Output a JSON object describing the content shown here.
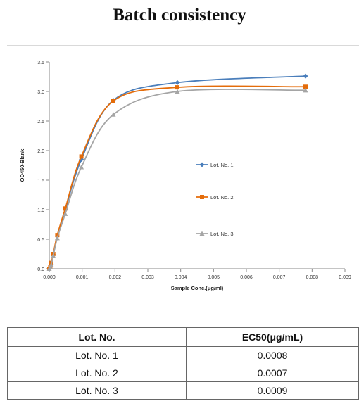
{
  "page": {
    "title": "Batch consistency"
  },
  "chart_data": {
    "type": "line",
    "title": "",
    "xlabel": "Sample Conc.(μg/ml)",
    "ylabel": "OD450-Blank",
    "xlim": [
      0,
      0.009
    ],
    "ylim": [
      0,
      3.5
    ],
    "x_ticks": [
      "0.000",
      "0.001",
      "0.002",
      "0.003",
      "0.004",
      "0.005",
      "0.006",
      "0.007",
      "0.008",
      "0.009"
    ],
    "y_ticks": [
      "0.0",
      "0.5",
      "1.0",
      "1.5",
      "2.0",
      "2.5",
      "3.0",
      "3.5"
    ],
    "grid": false,
    "legend_position": "right",
    "series": [
      {
        "name": "Lot. No. 1",
        "color": "#4a7ebb",
        "marker": "diamond",
        "x": [
          0,
          3.05e-05,
          6.1e-05,
          0.000122,
          0.000244,
          0.000488,
          0.000977,
          0.00195,
          0.0039,
          0.0078
        ],
        "y": [
          0.0,
          0.03,
          0.08,
          0.24,
          0.55,
          1.0,
          1.85,
          2.85,
          3.15,
          3.26
        ]
      },
      {
        "name": "Lot. No. 2",
        "color": "#e46c0a",
        "marker": "square",
        "x": [
          0,
          3.05e-05,
          6.1e-05,
          0.000122,
          0.000244,
          0.000488,
          0.000977,
          0.00195,
          0.0039,
          0.0078
        ],
        "y": [
          0.0,
          0.03,
          0.1,
          0.25,
          0.57,
          1.02,
          1.9,
          2.84,
          3.07,
          3.08
        ]
      },
      {
        "name": "Lot. No. 3",
        "color": "#a5a5a5",
        "marker": "triangle",
        "x": [
          0,
          3.05e-05,
          6.1e-05,
          0.000122,
          0.000244,
          0.000488,
          0.000977,
          0.00195,
          0.0039,
          0.0078
        ],
        "y": [
          0.0,
          0.03,
          0.07,
          0.22,
          0.52,
          0.93,
          1.72,
          2.61,
          3.0,
          3.02
        ]
      }
    ]
  },
  "table": {
    "headers": [
      "Lot. No.",
      "EC50(μg/mL)"
    ],
    "rows": [
      [
        "Lot. No. 1",
        "0.0008"
      ],
      [
        "Lot. No. 2",
        "0.0007"
      ],
      [
        "Lot. No. 3",
        "0.0009"
      ]
    ]
  }
}
